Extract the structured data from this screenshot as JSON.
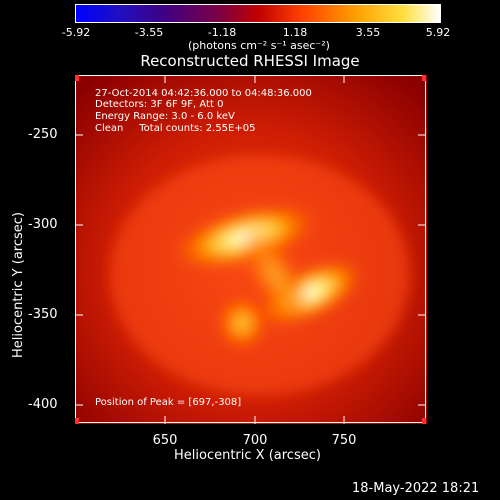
{
  "colorbar": {
    "ticks": [
      "-5.92",
      "-3.55",
      "-1.18",
      "1.18",
      "3.55",
      "5.92"
    ],
    "units": "(photons cm⁻² s⁻¹ asec⁻²)",
    "colors": [
      "#0000ff",
      "#2010c0",
      "#400080",
      "#800040",
      "#c00000",
      "#ff4000",
      "#ffa000",
      "#ffe040",
      "#ffffff"
    ]
  },
  "plot": {
    "title": "Reconstructed RHESSI Image",
    "annotation_lines": [
      "27-Oct-2014 04:42:36.000 to 04:48:36.000",
      "Detectors: 3F 6F 9F, Att 0",
      "Energy Range: 3.0 - 6.0 keV",
      "Clean     Total counts: 2.55E+05"
    ],
    "peak_text": "Position of Peak = [697,-308]",
    "x_ticks": [
      "650",
      "700",
      "750"
    ],
    "y_ticks": [
      "-250",
      "-300",
      "-350",
      "-400"
    ],
    "xlabel": "Heliocentric X (arcsec)",
    "ylabel": "Heliocentric Y (arcsec)",
    "sources": [
      {
        "x": 697,
        "y": -308,
        "strength": 1.0
      },
      {
        "x": 730,
        "y": -335,
        "strength": 0.8
      },
      {
        "x": 690,
        "y": -355,
        "strength": 0.55
      }
    ]
  },
  "footer": {
    "date": "18-May-2022 18:21"
  }
}
